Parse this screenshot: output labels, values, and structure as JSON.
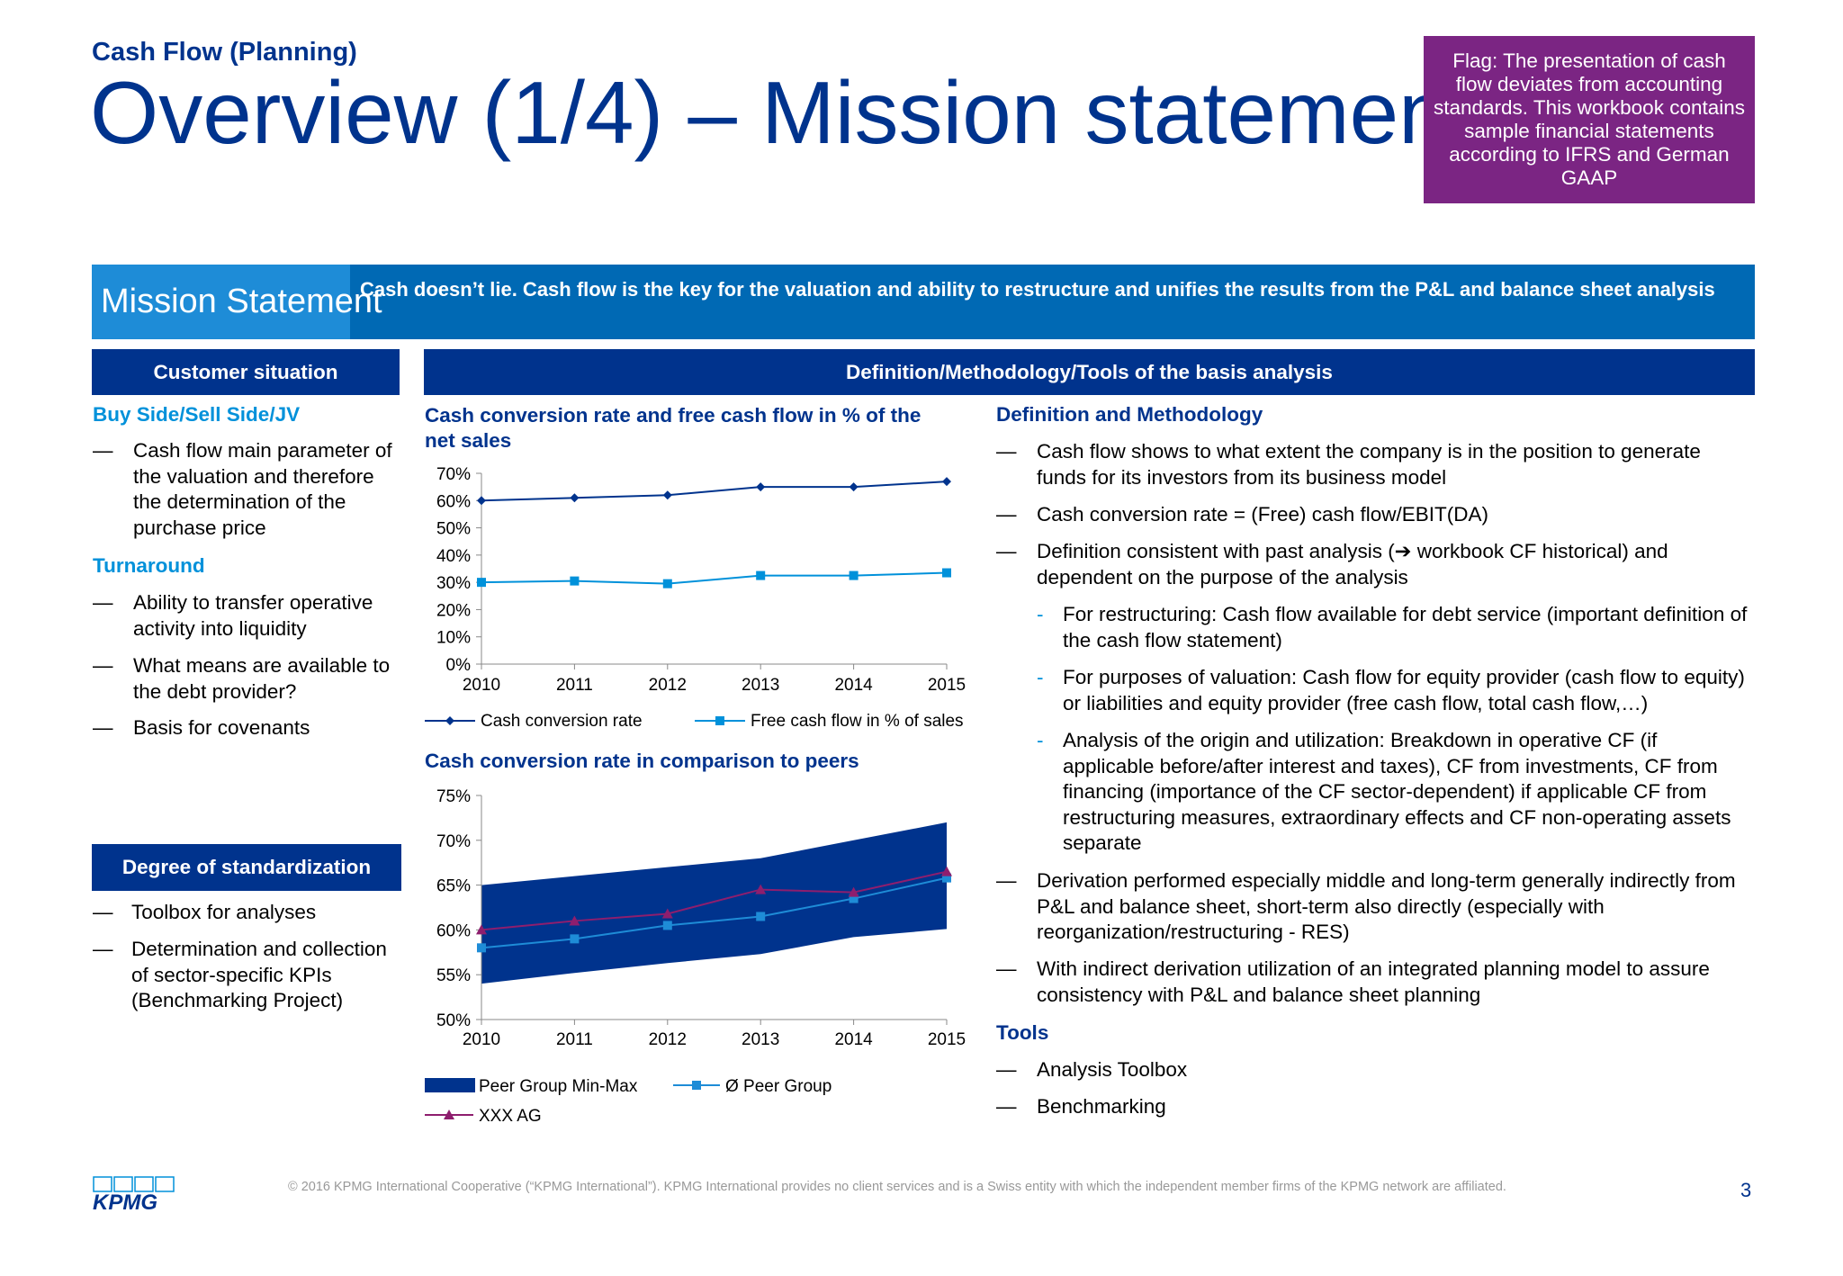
{
  "header": {
    "subtitle": "Cash Flow (Planning)",
    "title": "Overview (1/4) – Mission statement",
    "flag": "Flag: The presentation of cash flow deviates from accounting standards. This workbook contains sample financial statements according to IFRS and German GAAP"
  },
  "mission": {
    "label": "Mission Statement",
    "text": "Cash doesn’t lie. Cash flow is the key for the valuation and ability to restructure and unifies the results from the P&L and balance sheet analysis"
  },
  "customer": {
    "header": "Customer situation",
    "sections": [
      {
        "title": "Buy Side/Sell Side/JV",
        "items": [
          "Cash flow main parameter of the valuation and therefore the determination of the purchase price"
        ]
      },
      {
        "title": "Turnaround",
        "items": [
          "Ability to transfer operative activity into liquidity",
          "What means are available to the debt provider?",
          "Basis for covenants"
        ]
      }
    ]
  },
  "standardization": {
    "header": "Degree of standardization",
    "items": [
      "Toolbox for analyses",
      "Determination and collection of sector-specific KPIs (Benchmarking Project)"
    ]
  },
  "definition": {
    "header": "Definition/Methodology/Tools of the basis analysis",
    "methodology_title": "Definition and Methodology",
    "dash": "—",
    "subdash": "-",
    "items": [
      "Cash flow shows to what extent the company is in the position to generate funds for its investors from its business model",
      "Cash conversion rate = (Free) cash flow/EBIT(DA)",
      "Definition consistent with past analysis (➔ workbook CF historical) and dependent on the purpose of the analysis"
    ],
    "subitems": [
      "For restructuring: Cash flow available for debt service (important definition of the cash flow statement)",
      "For purposes of valuation: Cash flow for equity provider (cash flow to equity) or liabilities and equity provider (free cash flow, total cash flow,…)",
      "Analysis of the origin and utilization: Breakdown in operative CF (if applicable before/after interest and taxes), CF from investments, CF from financing (importance of the CF sector-dependent) if applicable CF from restructuring measures, extraordinary effects and CF non-operating assets separate"
    ],
    "items2": [
      "Derivation performed especially middle and long-term generally indirectly from P&L and balance sheet, short-term also directly (especially with reorganization/restructuring - RES)",
      "With indirect derivation utilization of an integrated planning model to assure consistency with P&L and balance sheet planning"
    ],
    "tools_title": "Tools",
    "tools": [
      "Analysis Toolbox",
      "Benchmarking"
    ]
  },
  "footer": {
    "copyright": "© 2016 KPMG International Cooperative (“KPMG International”). KPMG International provides no client services and is a Swiss entity with which the independent member firms of the KPMG network are affiliated.",
    "page": "3",
    "logo": "KPMG"
  },
  "colors": {
    "navy": "#00338D",
    "blue": "#0091DA",
    "mid_blue": "#0069B4",
    "purple": "#7B2583",
    "peer_band": "#00338D",
    "peer_avg": "#1E8CD7",
    "xxx": "#8E1E6E"
  },
  "chart_data": [
    {
      "type": "line",
      "title": "Cash conversion rate and free cash flow in % of the net sales",
      "x": [
        "2010",
        "2011",
        "2012",
        "2013",
        "2014",
        "2015"
      ],
      "ylim": [
        0,
        70
      ],
      "yticks": [
        "0%",
        "10%",
        "20%",
        "30%",
        "40%",
        "50%",
        "60%",
        "70%"
      ],
      "series": [
        {
          "name": "Cash conversion rate",
          "values": [
            60,
            61,
            62,
            65,
            65,
            67
          ],
          "color": "#00338D",
          "marker": "diamond"
        },
        {
          "name": "Free cash flow in % of sales",
          "values": [
            30,
            30.5,
            29.5,
            32.5,
            32.5,
            33.5
          ],
          "color": "#0091DA",
          "marker": "square"
        }
      ]
    },
    {
      "type": "area",
      "title": "Cash conversion rate in comparison to peers",
      "x": [
        "2010",
        "2011",
        "2012",
        "2013",
        "2014",
        "2015"
      ],
      "ylim": [
        50,
        75
      ],
      "yticks": [
        "50%",
        "55%",
        "60%",
        "65%",
        "70%",
        "75%"
      ],
      "band": {
        "name": "Peer Group Min-Max",
        "min": [
          54,
          55.2,
          56.3,
          57.3,
          59.2,
          60.1
        ],
        "max": [
          65,
          66,
          67,
          68,
          70,
          72
        ],
        "color": "#00338D"
      },
      "series": [
        {
          "name": "Ø Peer Group",
          "values": [
            58,
            59,
            60.5,
            61.5,
            63.5,
            65.8
          ],
          "color": "#1E8CD7",
          "marker": "square"
        },
        {
          "name": "XXX AG",
          "values": [
            60,
            61,
            61.8,
            64.5,
            64.2,
            66.5
          ],
          "color": "#8E1E6E",
          "marker": "triangle"
        }
      ]
    }
  ]
}
